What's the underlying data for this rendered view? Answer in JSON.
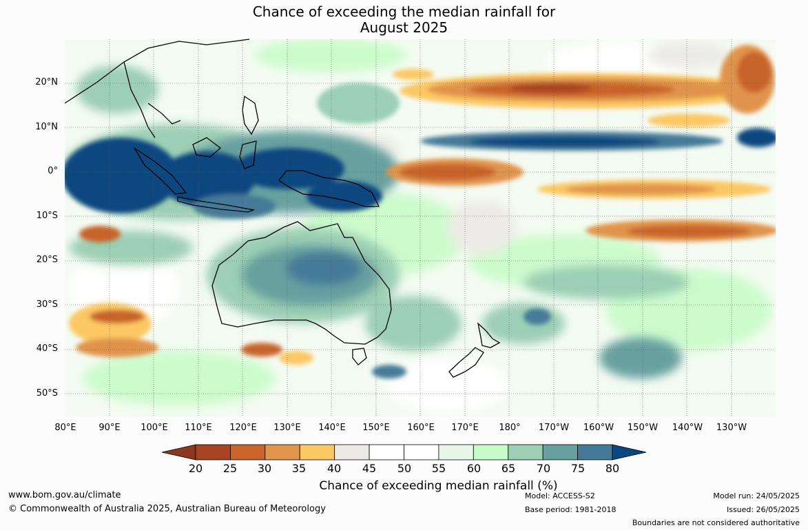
{
  "title": {
    "line1": "Chance of exceeding the median rainfall for",
    "line2": "August 2025"
  },
  "map": {
    "lat_labels": [
      "20°N",
      "10°N",
      "0°",
      "10°S",
      "20°S",
      "30°S",
      "40°S",
      "50°S"
    ],
    "lon_labels": [
      "80°E",
      "90°E",
      "100°E",
      "110°E",
      "120°E",
      "130°E",
      "140°E",
      "150°E",
      "160°E",
      "170°E",
      "180°",
      "170°W",
      "160°W",
      "150°W",
      "140°W",
      "130°W"
    ]
  },
  "colorbar": {
    "ticks": [
      "20",
      "25",
      "30",
      "35",
      "40",
      "45",
      "50",
      "55",
      "60",
      "65",
      "70",
      "75",
      "80"
    ],
    "colors": [
      "#a84424",
      "#c8642c",
      "#e0944c",
      "#fcc864",
      "#eceae6",
      "#ffffff",
      "#ffffff",
      "#e8f6e8",
      "#c8fcc8",
      "#9ccfb4",
      "#68a0a0",
      "#447a98"
    ],
    "low_color": "#8c3820",
    "high_color": "#0c4680",
    "label": "Chance of exceeding median rainfall (%)"
  },
  "footer": {
    "url": "www.bom.gov.au/climate",
    "copyright": "© Commonwealth of Australia 2025, Australian Bureau of Meteorology",
    "model": "Model: ACCESS-S2",
    "base_period": "Base period: 1981-2018",
    "model_run": "Model run: 24/05/2025",
    "issued": "Issued: 26/05/2025",
    "disclaimer": "Boundaries are not considered authoritative"
  }
}
